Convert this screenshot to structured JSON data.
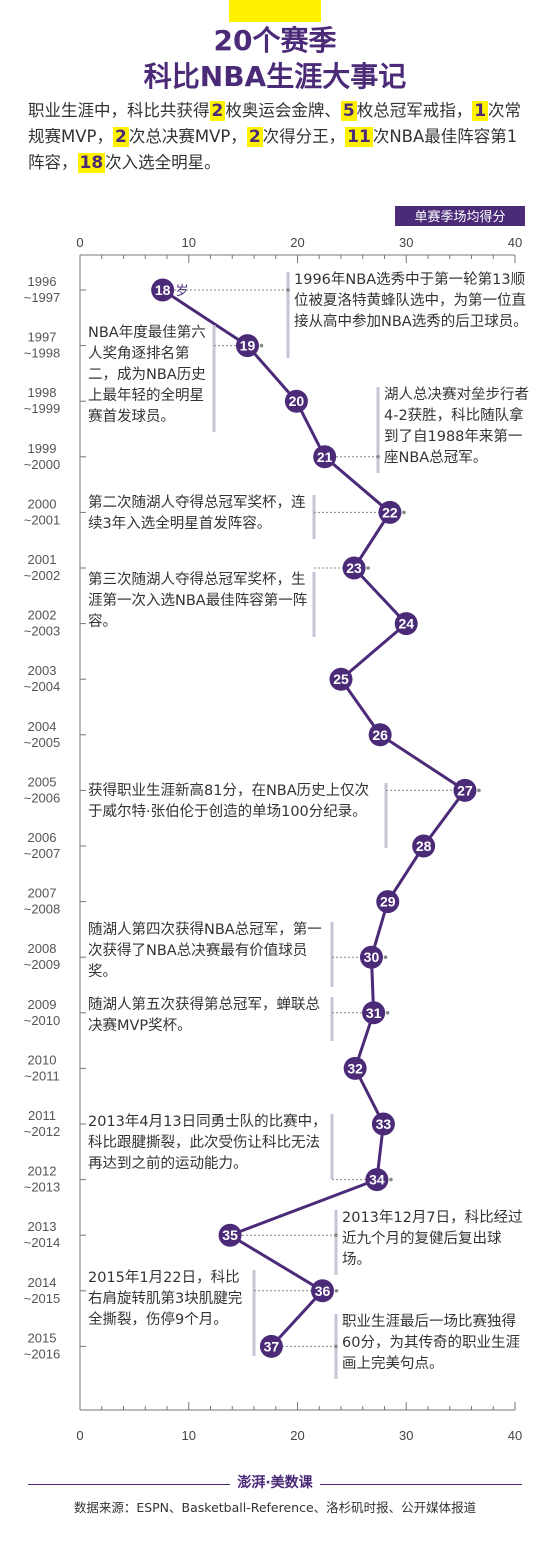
{
  "header": {
    "title_line1": "20个赛季",
    "title_line2": "科比NBA生涯大事记"
  },
  "intro": [
    {
      "t": "职业生涯中，科比共获得",
      "hl": false
    },
    {
      "t": "2",
      "hl": true
    },
    {
      "t": "枚奥运会金牌、",
      "hl": false
    },
    {
      "t": "5",
      "hl": true
    },
    {
      "t": "枚总冠军戒指，",
      "hl": false
    },
    {
      "t": "1",
      "hl": true
    },
    {
      "t": "次常规赛MVP，",
      "hl": false
    },
    {
      "t": "2",
      "hl": true
    },
    {
      "t": "次总决赛MVP，",
      "hl": false
    },
    {
      "t": "2",
      "hl": true
    },
    {
      "t": "次得分王，",
      "hl": false
    },
    {
      "t": "11",
      "hl": true
    },
    {
      "t": "次NBA最佳阵容第1阵容，",
      "hl": false
    },
    {
      "t": "18",
      "hl": true
    },
    {
      "t": "次入选全明星。",
      "hl": false
    }
  ],
  "chart_data": {
    "type": "line",
    "axis_title": "单赛季场均得分",
    "xlim": [
      0,
      40
    ],
    "xticks": [
      0,
      10,
      20,
      30,
      40
    ],
    "age_unit": "岁",
    "points": [
      {
        "season": [
          "1996",
          "~1997"
        ],
        "age": "18",
        "ppg": 7.6
      },
      {
        "season": [
          "1997",
          "~1998"
        ],
        "age": "19",
        "ppg": 15.4
      },
      {
        "season": [
          "1998",
          "~1999"
        ],
        "age": "20",
        "ppg": 19.9
      },
      {
        "season": [
          "1999",
          "~2000"
        ],
        "age": "21",
        "ppg": 22.5
      },
      {
        "season": [
          "2000",
          "~2001"
        ],
        "age": "22",
        "ppg": 28.5
      },
      {
        "season": [
          "2001",
          "~2002"
        ],
        "age": "23",
        "ppg": 25.2
      },
      {
        "season": [
          "2002",
          "~2003"
        ],
        "age": "24",
        "ppg": 30.0
      },
      {
        "season": [
          "2003",
          "~2004"
        ],
        "age": "25",
        "ppg": 24.0
      },
      {
        "season": [
          "2004",
          "~2005"
        ],
        "age": "26",
        "ppg": 27.6
      },
      {
        "season": [
          "2005",
          "~2006"
        ],
        "age": "27",
        "ppg": 35.4
      },
      {
        "season": [
          "2006",
          "~2007"
        ],
        "age": "28",
        "ppg": 31.6
      },
      {
        "season": [
          "2007",
          "~2008"
        ],
        "age": "29",
        "ppg": 28.3
      },
      {
        "season": [
          "2008",
          "~2009"
        ],
        "age": "30",
        "ppg": 26.8
      },
      {
        "season": [
          "2009",
          "~2010"
        ],
        "age": "31",
        "ppg": 27.0
      },
      {
        "season": [
          "2010",
          "~2011"
        ],
        "age": "32",
        "ppg": 25.3
      },
      {
        "season": [
          "2011",
          "~2012"
        ],
        "age": "33",
        "ppg": 27.9
      },
      {
        "season": [
          "2012",
          "~2013"
        ],
        "age": "34",
        "ppg": 27.3
      },
      {
        "season": [
          "2013",
          "~2014"
        ],
        "age": "35",
        "ppg": 13.8
      },
      {
        "season": [
          "2014",
          "~2015"
        ],
        "age": "36",
        "ppg": 22.3
      },
      {
        "season": [
          "2015",
          "~2016"
        ],
        "age": "37",
        "ppg": 17.6
      }
    ],
    "annotations": [
      {
        "point": 0,
        "side": "right",
        "text": "1996年NBA选秀中于第一轮第13顺位被夏洛特黄蜂队选中，为第一位直接从高中参加NBA选秀的后卫球员。"
      },
      {
        "point": 1,
        "side": "left",
        "text": "NBA年度最佳第六人奖角逐排名第二，成为NBA历史上最年轻的全明星赛首发球员。"
      },
      {
        "point": 3,
        "side": "right",
        "text": "湖人总决赛对垒步行者4-2获胜，科比随队拿到了自1988年来第一座NBA总冠军。"
      },
      {
        "point": 4,
        "side": "left",
        "text": "第二次随湖人夺得总冠军奖杯，连续3年入选全明星首发阵容。"
      },
      {
        "point": 5,
        "side": "left",
        "text": "第三次随湖人夺得总冠军奖杯，生涯第一次入选NBA最佳阵容第一阵容。"
      },
      {
        "point": 9,
        "side": "left",
        "text": "获得职业生涯新高81分，在NBA历史上仅次于威尔特·张伯伦于创造的单场100分纪录。"
      },
      {
        "point": 12,
        "side": "left",
        "text": "随湖人第四次获得NBA总冠军，第一次获得了NBA总决赛最有价值球员奖。"
      },
      {
        "point": 13,
        "side": "left",
        "text": "随湖人第五次获得第总冠军，蝉联总决赛MVP奖杯。"
      },
      {
        "point": 16,
        "side": "left",
        "text": "2013年4月13日同勇士队的比赛中，科比跟腱撕裂，此次受伤让科比无法再达到之前的运动能力。"
      },
      {
        "point": 17,
        "side": "right",
        "text": "2013年12月7日，科比经过近九个月的复健后复出球场。"
      },
      {
        "point": 18,
        "side": "left",
        "text": "2015年1月22日，科比右肩旋转肌第3块肌腱完全撕裂，伤停9个月。"
      },
      {
        "point": 19,
        "side": "right",
        "text": "职业生涯最后一场比赛独得60分，为其传奇的职业生涯画上完美句点。"
      }
    ]
  },
  "footer": {
    "logo": "澎湃·美数课",
    "source": "数据来源：ESPN、Basketball-Reference、洛杉矶时报、公开媒体报道"
  },
  "colors": {
    "accent": "#4b2a78",
    "highlight": "#fff200",
    "guide": "#c9c3d6"
  }
}
